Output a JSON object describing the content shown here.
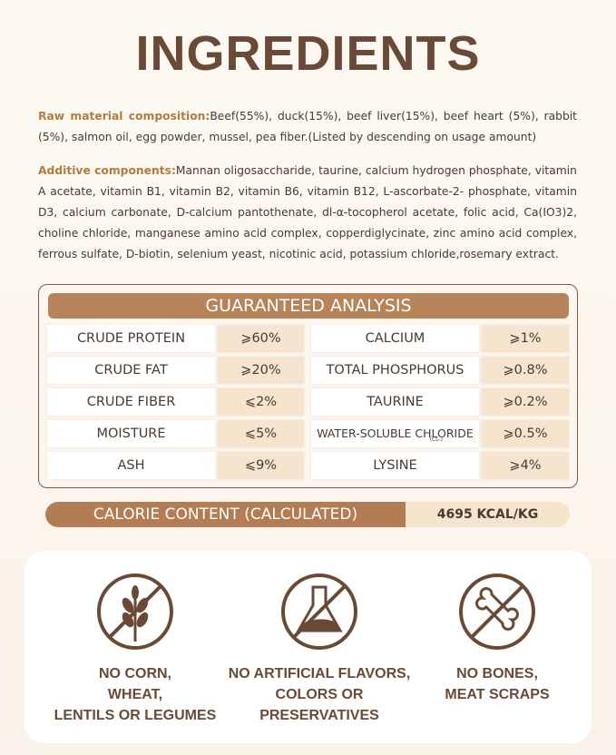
{
  "title": "INGREDIENTS",
  "raw_material": {
    "label": "Raw material composition:",
    "text": "Beef(55%), duck(15%), beef liver(15%), beef heart (5%), rabbit (5%), salmon oil, egg powder, mussel, pea fiber.(Listed by descending on usage amount)"
  },
  "additives": {
    "label": "Additive components:",
    "text": "Mannan oligosaccharide, taurine, calcium hydrogen phosphate, vitamin A acetate, vitamin B1, vitamin B2, vitamin B6, vitamin B12, L-ascorbate-2- phosphate, vitamin D3, calcium carbonate, D-calcium pantothenate, dl-α-tocopherol acetate, folic acid, Ca(IO3)2, choline chloride, manganese amino acid complex, copperdiglycinate, zinc amino acid complex, ferrous sulfate, D-biotin, selenium yeast, nicotinic acid, potassium chloride,rosemary extract."
  },
  "guaranteed_analysis": {
    "title": "GUARANTEED ANALYSIS",
    "rows": [
      {
        "left": {
          "name": "CRUDE PROTEIN",
          "value": "⩾60%"
        },
        "right": {
          "name": "CALCIUM",
          "value": "⩾1%"
        }
      },
      {
        "left": {
          "name": "CRUDE FAT",
          "value": "⩾20%"
        },
        "right": {
          "name": "TOTAL PHOSPHORUS",
          "value": "⩾0.8%"
        }
      },
      {
        "left": {
          "name": "CRUDE FIBER",
          "value": "⩽2%"
        },
        "right": {
          "name": "TAURINE",
          "value": "⩾0.2%"
        }
      },
      {
        "left": {
          "name": "MOISTURE",
          "value": "⩽5%"
        },
        "right": {
          "name": "WATER-SOLUBLE CHLORIDE",
          "note": "(CL-)",
          "value": "⩾0.5%"
        }
      },
      {
        "left": {
          "name": "ASH",
          "value": "⩽9%"
        },
        "right": {
          "name": "LYSINE",
          "value": "⩾4%"
        }
      }
    ]
  },
  "calorie": {
    "label": "CALORIE CONTENT (CALCULATED)",
    "value": "4695 KCAL/KG"
  },
  "features": [
    {
      "label": "NO CORN,\nWHEAT,\nLENTILS OR LEGUMES"
    },
    {
      "label": "NO ARTIFICIAL FLAVORS,\nCOLORS OR\nPRESERVATIVES"
    },
    {
      "label": "NO BONES,\nMEAT SCRAPS"
    }
  ]
}
